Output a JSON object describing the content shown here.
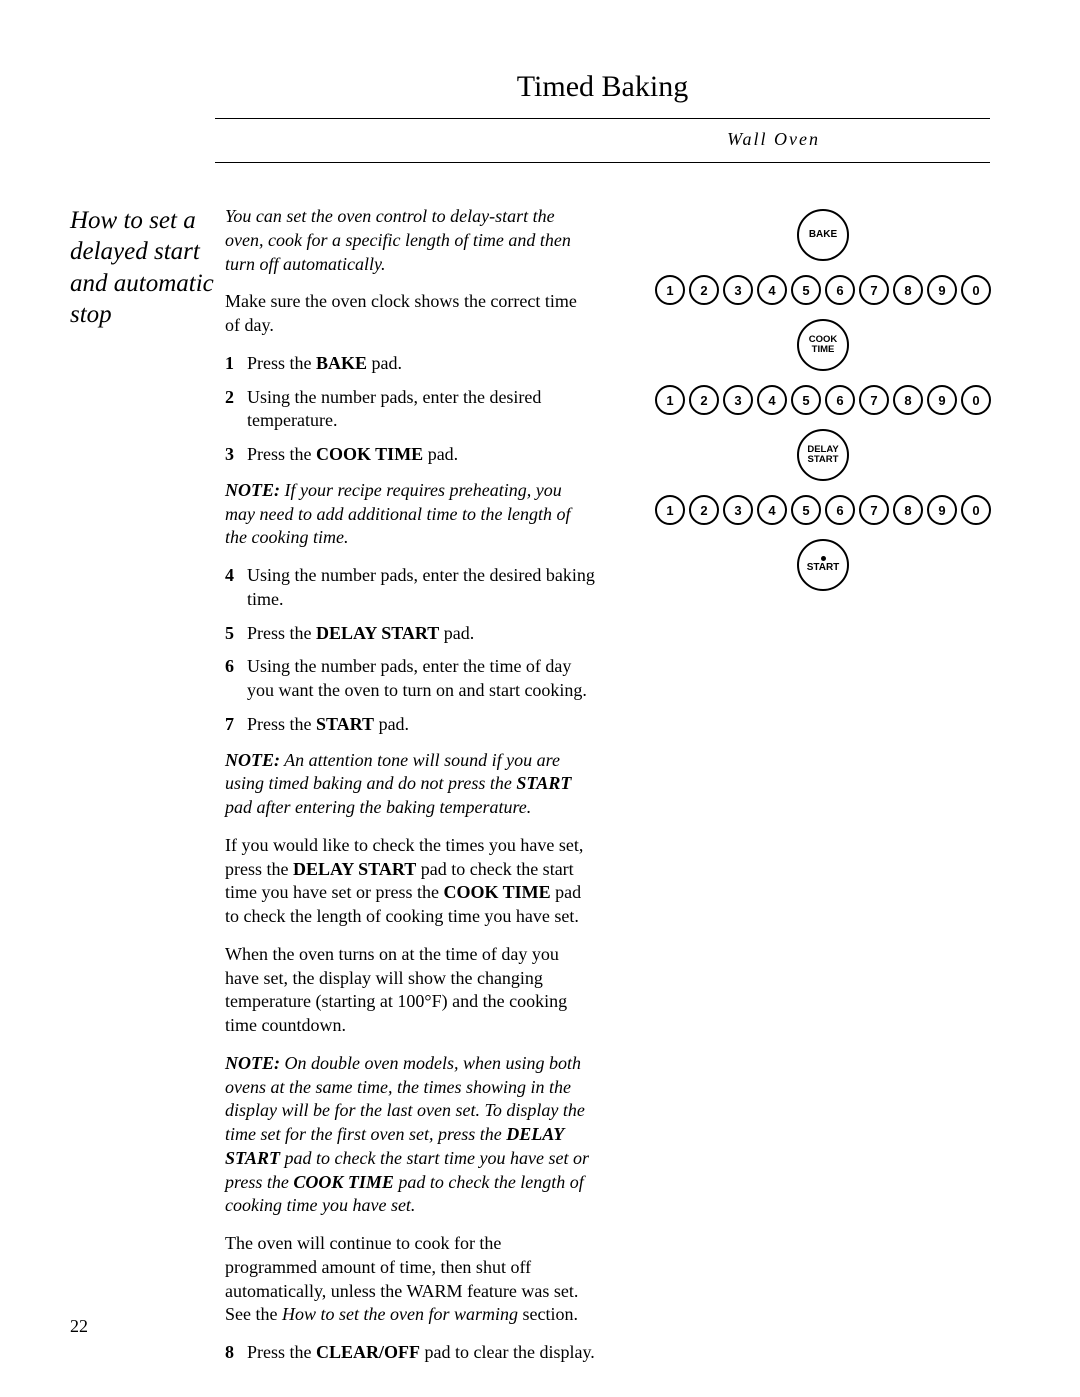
{
  "header": {
    "title": "Timed Baking",
    "subtitle": "Wall Oven"
  },
  "section_heading": "How to set a delayed start and automatic stop",
  "intro_italic": "You can set the oven control to delay-start the oven, cook for a specific length of time and then turn off automatically.",
  "pre_steps": "Make sure the oven clock shows the correct time of day.",
  "steps_a": [
    {
      "n": "1",
      "pre": "Press the ",
      "b": "BAKE",
      "post": " pad."
    },
    {
      "n": "2",
      "text": "Using the number pads, enter the desired temperature."
    },
    {
      "n": "3",
      "pre": "Press the ",
      "b": "COOK TIME",
      "post": " pad."
    }
  ],
  "note1": {
    "label": "NOTE:",
    "text": " If your recipe requires preheating, you may need to add additional time to the length of the cooking time."
  },
  "steps_b": [
    {
      "n": "4",
      "text": "Using the number pads, enter the desired baking time."
    },
    {
      "n": "5",
      "pre": "Press the ",
      "b": "DELAY START",
      "post": " pad."
    },
    {
      "n": "6",
      "text": "Using the number pads, enter the time of day you want the oven to turn on and start cooking."
    },
    {
      "n": "7",
      "pre": "Press the ",
      "b": "START",
      "post": " pad."
    }
  ],
  "note2": {
    "label": "NOTE:",
    "t1": " An attention tone will sound if you are using timed baking and do not press the ",
    "b": "START",
    "t2": " pad after entering the baking temperature."
  },
  "para_check": {
    "t1": "If you would like to check the times you have set, press the ",
    "b1": "DELAY START",
    "t2": " pad to check the start time you have set or press the ",
    "b2": "COOK TIME",
    "t3": " pad to check the length of cooking time you have set."
  },
  "para_on": "When the oven turns on at the time of day you have set, the display will show the changing temperature (starting at 100°F) and the cooking time countdown.",
  "note3": {
    "label": "NOTE:",
    "t1": " On double oven models, when using both ovens at the same time, the times showing in the display will be for the last oven set. To display the time set for the first oven set, press the ",
    "b1": "DELAY START",
    "t2": " pad to check the start time you have set or press the ",
    "b2": "COOK TIME",
    "t3": " pad to check the length of cooking time you have set."
  },
  "para_cont": {
    "t1": "The oven will continue to cook for the programmed amount of time, then shut off automatically, unless the WARM feature was set. See the ",
    "i": "How to set the oven for warming",
    "t2": " section."
  },
  "steps_c": [
    {
      "n": "8",
      "pre": "Press the ",
      "b": "CLEAR/OFF",
      "post": " pad to clear the display."
    }
  ],
  "pads": {
    "bake": "BAKE",
    "cook_time_l1": "COOK",
    "cook_time_l2": "TIME",
    "delay_l1": "DELAY",
    "delay_l2": "START",
    "start": "START",
    "numbers": [
      "1",
      "2",
      "3",
      "4",
      "5",
      "6",
      "7",
      "8",
      "9",
      "0"
    ]
  },
  "page_number": "22"
}
